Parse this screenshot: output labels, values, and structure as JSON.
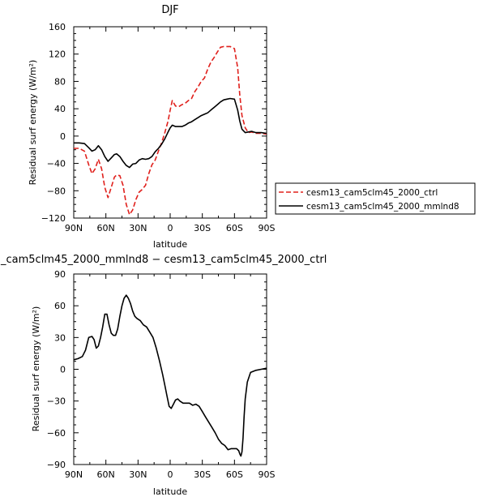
{
  "chart_data": [
    {
      "type": "line",
      "title": "DJF",
      "xlabel": "latitude",
      "ylabel": "Residual surf energy (W/m²)",
      "xlim": [
        90,
        -90
      ],
      "ylim": [
        -120,
        160
      ],
      "x_ticks": [
        90,
        60,
        30,
        0,
        -30,
        -60,
        -90
      ],
      "x_tick_labels": [
        "90N",
        "60N",
        "30N",
        "0",
        "30S",
        "60S",
        "90S"
      ],
      "y_ticks": [
        -120,
        -80,
        -40,
        0,
        40,
        80,
        120,
        160
      ],
      "y_tick_labels": [
        "−120",
        "−80",
        "−40",
        "0",
        "40",
        "80",
        "120",
        "160"
      ],
      "legend_position": "right",
      "series": [
        {
          "name": "cesm13_cam5clm45_2000_ctrl",
          "color": "#e0201c",
          "dash": "dashed",
          "x": [
            90,
            85,
            80,
            76,
            73,
            70,
            67,
            64,
            61,
            58,
            55,
            52,
            50,
            47,
            44,
            41,
            38,
            35,
            32,
            29,
            26,
            23,
            20,
            17,
            14,
            11,
            8,
            5,
            2,
            0,
            -2,
            -5,
            -8,
            -11,
            -14,
            -17,
            -20,
            -23,
            -26,
            -29,
            -32,
            -35,
            -38,
            -41,
            -44,
            -47,
            -50,
            -53,
            -56,
            -60,
            -63,
            -65,
            -67,
            -70,
            -73,
            -76,
            -80,
            -85,
            -90
          ],
          "y": [
            -18,
            -18,
            -22,
            -42,
            -55,
            -48,
            -34,
            -48,
            -75,
            -90,
            -75,
            -60,
            -57,
            -58,
            -72,
            -100,
            -115,
            -108,
            -93,
            -82,
            -78,
            -72,
            -55,
            -42,
            -35,
            -22,
            -10,
            5,
            22,
            38,
            52,
            44,
            43,
            46,
            48,
            52,
            55,
            65,
            72,
            80,
            85,
            98,
            108,
            115,
            123,
            130,
            131,
            131,
            131,
            128,
            100,
            60,
            30,
            12,
            5,
            6,
            4,
            4,
            3
          ]
        },
        {
          "name": "cesm13_cam5clm45_2000_mmlnd8",
          "color": "#000000",
          "dash": "solid",
          "x": [
            90,
            85,
            80,
            76,
            73,
            70,
            67,
            64,
            61,
            58,
            55,
            52,
            50,
            47,
            44,
            41,
            38,
            35,
            32,
            29,
            26,
            23,
            20,
            17,
            14,
            11,
            8,
            5,
            2,
            0,
            -2,
            -5,
            -8,
            -11,
            -14,
            -17,
            -20,
            -23,
            -26,
            -29,
            -32,
            -35,
            -38,
            -41,
            -44,
            -47,
            -50,
            -53,
            -56,
            -60,
            -63,
            -65,
            -67,
            -70,
            -73,
            -76,
            -80,
            -85,
            -90
          ],
          "y": [
            -10,
            -10,
            -11,
            -17,
            -22,
            -20,
            -14,
            -20,
            -30,
            -37,
            -32,
            -27,
            -26,
            -30,
            -37,
            -43,
            -46,
            -41,
            -40,
            -35,
            -33,
            -34,
            -33,
            -30,
            -23,
            -18,
            -12,
            -4,
            6,
            12,
            16,
            14,
            14,
            14,
            16,
            19,
            21,
            24,
            27,
            30,
            32,
            34,
            38,
            42,
            46,
            50,
            53,
            54,
            55,
            54,
            38,
            22,
            10,
            5,
            6,
            7,
            5,
            5,
            4
          ]
        }
      ]
    },
    {
      "type": "line",
      "title": "_cam5clm45_2000_mmlnd8 − cesm13_cam5clm45_2000_ctrl",
      "xlabel": "latitude",
      "ylabel": "Residual surf energy (W/m²)",
      "xlim": [
        90,
        -90
      ],
      "ylim": [
        -90,
        90
      ],
      "x_ticks": [
        90,
        60,
        30,
        0,
        -30,
        -60,
        -90
      ],
      "x_tick_labels": [
        "90N",
        "60N",
        "30N",
        "0",
        "30S",
        "60S",
        "90S"
      ],
      "y_ticks": [
        -90,
        -60,
        -30,
        0,
        30,
        60,
        90
      ],
      "y_tick_labels": [
        "−90",
        "−60",
        "−30",
        "0",
        "30",
        "60",
        "90"
      ],
      "series": [
        {
          "color": "#000000",
          "dash": "solid",
          "x": [
            90,
            86,
            82,
            79,
            76,
            73,
            71,
            69,
            67,
            65,
            63,
            61,
            59,
            57,
            55,
            53,
            51,
            49,
            47,
            45,
            43,
            41,
            39,
            37,
            35,
            33,
            31,
            28,
            25,
            22,
            19,
            16,
            13,
            10,
            7,
            5,
            3,
            1,
            -1,
            -3,
            -5,
            -7,
            -9,
            -12,
            -15,
            -18,
            -21,
            -24,
            -27,
            -30,
            -33,
            -36,
            -39,
            -42,
            -45,
            -48,
            -51,
            -54,
            -57,
            -60,
            -62,
            -64,
            -65,
            -66,
            -67,
            -68,
            -69,
            -70,
            -72,
            -75,
            -80,
            -85,
            -90
          ],
          "y": [
            9,
            10,
            12,
            18,
            30,
            31,
            28,
            20,
            22,
            30,
            40,
            52,
            52,
            42,
            34,
            32,
            32,
            38,
            50,
            60,
            67,
            70,
            67,
            62,
            55,
            50,
            48,
            46,
            42,
            40,
            35,
            30,
            20,
            8,
            -5,
            -15,
            -25,
            -35,
            -37,
            -33,
            -29,
            -28,
            -30,
            -32,
            -32,
            -32,
            -34,
            -33,
            -35,
            -40,
            -45,
            -50,
            -55,
            -60,
            -66,
            -70,
            -72,
            -76,
            -75,
            -75,
            -75,
            -77,
            -80,
            -82,
            -78,
            -65,
            -45,
            -28,
            -12,
            -3,
            -1,
            0,
            1
          ]
        }
      ]
    }
  ]
}
